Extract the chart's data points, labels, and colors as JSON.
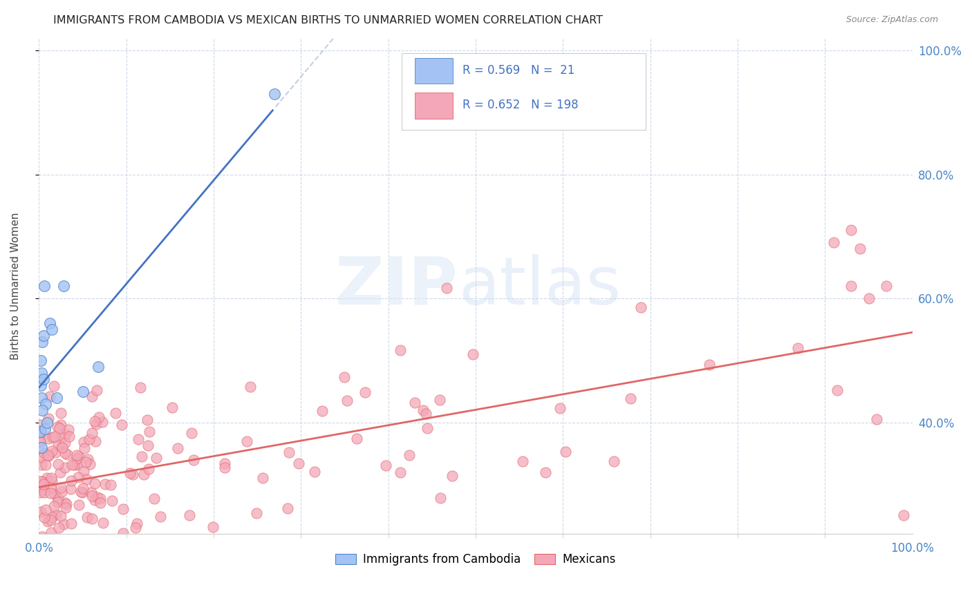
{
  "title": "IMMIGRANTS FROM CAMBODIA VS MEXICAN BIRTHS TO UNMARRIED WOMEN CORRELATION CHART",
  "source": "Source: ZipAtlas.com",
  "ylabel": "Births to Unmarried Women",
  "legend_label1": "Immigrants from Cambodia",
  "legend_label2": "Mexicans",
  "r1": "0.569",
  "n1": "21",
  "r2": "0.652",
  "n2": "198",
  "color_blue": "#a4c2f4",
  "color_pink": "#f4a7b9",
  "color_blue_dark": "#4a86c8",
  "color_pink_dark": "#e06666",
  "color_trendline_blue": "#4472c4",
  "color_trendline_pink": "#e06666",
  "color_grid": "#c8d4e8",
  "cambodia_x": [
    0.001,
    0.002,
    0.002,
    0.003,
    0.003,
    0.004,
    0.005,
    0.005,
    0.006,
    0.008,
    0.012,
    0.015,
    0.02,
    0.028,
    0.05,
    0.068,
    0.27,
    0.003,
    0.004,
    0.007,
    0.009
  ],
  "cambodia_y": [
    0.385,
    0.46,
    0.5,
    0.44,
    0.48,
    0.53,
    0.47,
    0.54,
    0.62,
    0.43,
    0.56,
    0.55,
    0.44,
    0.62,
    0.45,
    0.49,
    0.93,
    0.36,
    0.42,
    0.39,
    0.4
  ],
  "xlim": [
    0.0,
    1.0
  ],
  "ylim": [
    0.22,
    1.02
  ],
  "yticks_right": [
    1.0,
    0.8,
    0.6,
    0.4
  ],
  "xticks_minor": [
    0.1,
    0.2,
    0.3,
    0.4,
    0.5,
    0.6,
    0.7,
    0.8,
    0.9
  ]
}
